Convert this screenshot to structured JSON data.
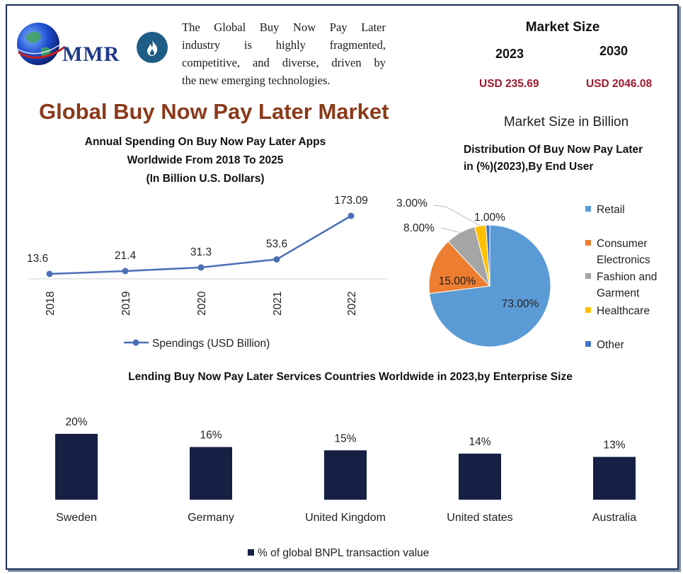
{
  "header": {
    "logo_text": "MMR",
    "intro_lines": [
      "The Global Buy Now Pay Later",
      "industry is highly fragmented,",
      "competitive, and diverse, driven by",
      "the new emerging technologies."
    ],
    "main_title": "Global Buy Now Pay Later Market"
  },
  "market_size": {
    "title": "Market Size",
    "year_a": "2023",
    "year_b": "2030",
    "value_a": "USD 235.69",
    "value_b": "USD 2046.08",
    "subtitle": "Market Size in Billion"
  },
  "colors": {
    "line": "#4a6fb5",
    "retail": "#5b9bd5",
    "consumer": "#ed7d31",
    "fashion": "#a5a5a5",
    "healthcare": "#ffc000",
    "other": "#4472c4",
    "bar": "#162044",
    "title": "#8b3a1a",
    "usd": "#9b1b30"
  },
  "chart_data": [
    {
      "type": "line",
      "title": [
        "Annual Spending On Buy Now Pay Later Apps",
        "Worldwide From 2018 To 2025",
        "(In Billion U.S. Dollars)"
      ],
      "x": [
        "2018",
        "2019",
        "2020",
        "2021",
        "2022"
      ],
      "series": [
        {
          "name": "Spendings (USD Billion)",
          "values": [
            13.6,
            21.4,
            31.3,
            53.6,
            173.09
          ]
        }
      ],
      "data_labels": [
        "13.6",
        "21.4",
        "31.3",
        "53.6",
        "173.09"
      ],
      "ylim": [
        0,
        200
      ],
      "legend_position": "bottom",
      "grid": false
    },
    {
      "type": "pie",
      "title": [
        "Distribution Of Buy Now Pay Later",
        "in (%)(2023),By End User"
      ],
      "slices": [
        {
          "name": "Retail",
          "value": 73,
          "label": "73.00%"
        },
        {
          "name": "Consumer Electronics",
          "value": 15,
          "label": "15.00%"
        },
        {
          "name": "Fashion and Garment",
          "value": 8,
          "label": "8.00%"
        },
        {
          "name": "Healthcare",
          "value": 3,
          "label": "3.00%"
        },
        {
          "name": "Other",
          "value": 1,
          "label": "1.00%"
        }
      ],
      "legend": [
        [
          "Retail"
        ],
        [
          "Consumer",
          "Electronics"
        ],
        [
          "Fashion and",
          "Garment"
        ],
        [
          "Healthcare"
        ],
        [
          "Other"
        ]
      ],
      "legend_position": "right"
    },
    {
      "type": "bar",
      "title": "Lending Buy Now Pay Later Services Countries Worldwide in 2023,by Enterprise Size",
      "categories": [
        "Sweden",
        "Germany",
        "United Kingdom",
        "United states",
        "Australia"
      ],
      "series": [
        {
          "name": "% of global BNPL transaction value",
          "values": [
            20,
            16,
            15,
            14,
            13
          ]
        }
      ],
      "data_labels": [
        "20%",
        "16%",
        "15%",
        "14%",
        "13%"
      ],
      "ylim": [
        0,
        25
      ],
      "legend_position": "bottom",
      "grid": false
    }
  ]
}
